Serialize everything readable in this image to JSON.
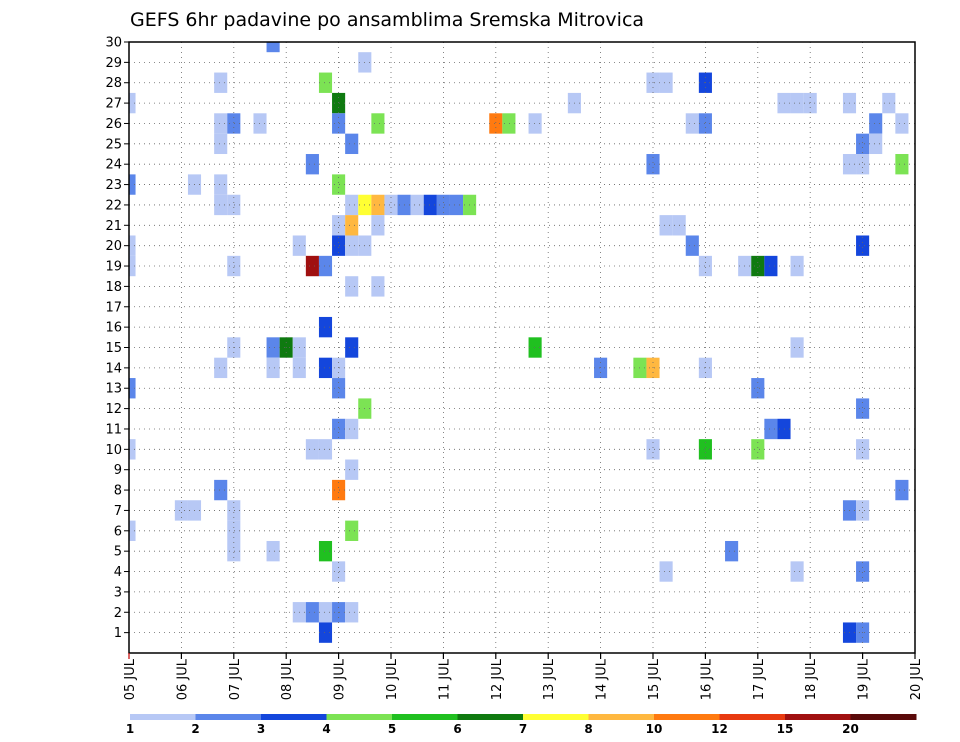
{
  "chart_data": {
    "type": "heatmap",
    "title": "GEFS 6hr padavine po ansamblima Sremska Mitrovica",
    "xlabel": "",
    "ylabel": "",
    "x_tick_labels": [
      "05 JUL",
      "06 JUL",
      "07 JUL",
      "08 JUL",
      "09 JUL",
      "10 JUL",
      "11 JUL",
      "12 JUL",
      "13 JUL",
      "14 JUL",
      "15 JUL",
      "16 JUL",
      "17 JUL",
      "18 JUL",
      "19 JUL",
      "20 JUL"
    ],
    "x_range_days": [
      0,
      15
    ],
    "y_tick_labels": [
      "1",
      "2",
      "3",
      "4",
      "5",
      "6",
      "7",
      "8",
      "9",
      "10",
      "11",
      "12",
      "13",
      "14",
      "15",
      "16",
      "17",
      "18",
      "19",
      "20",
      "21",
      "22",
      "23",
      "24",
      "25",
      "26",
      "27",
      "28",
      "29",
      "30"
    ],
    "y_range": [
      0,
      30
    ],
    "grid": true,
    "colorbar": {
      "position": "bottom",
      "tick_labels": [
        "1",
        "2",
        "3",
        "4",
        "5",
        "6",
        "7",
        "8",
        "10",
        "12",
        "15",
        "20"
      ],
      "colors": [
        "#b7c8f5",
        "#5b86ea",
        "#1446dc",
        "#7ce354",
        "#20c020",
        "#0f7a10",
        "#ffff33",
        "#ffb840",
        "#ff7a10",
        "#e83a10",
        "#a01010",
        "#5a0a0a"
      ]
    },
    "cells": [
      {
        "x": 2.75,
        "m": 30,
        "c": 2
      },
      {
        "x": 4.5,
        "m": 29,
        "c": 1
      },
      {
        "x": 1.75,
        "m": 28,
        "c": 1
      },
      {
        "x": 3.75,
        "m": 28,
        "c": 4
      },
      {
        "x": 10,
        "m": 28,
        "c": 1
      },
      {
        "x": 10.25,
        "m": 28,
        "c": 1
      },
      {
        "x": 11,
        "m": 28,
        "c": 3
      },
      {
        "x": 0,
        "m": 27,
        "c": 1
      },
      {
        "x": 4,
        "m": 27,
        "c": 6
      },
      {
        "x": 8.5,
        "m": 27,
        "c": 1
      },
      {
        "x": 12.5,
        "m": 27,
        "c": 1
      },
      {
        "x": 12.75,
        "m": 27,
        "c": 1
      },
      {
        "x": 13,
        "m": 27,
        "c": 1
      },
      {
        "x": 13.75,
        "m": 27,
        "c": 1
      },
      {
        "x": 14.5,
        "m": 27,
        "c": 1
      },
      {
        "x": 1.75,
        "m": 26,
        "c": 1
      },
      {
        "x": 2,
        "m": 26,
        "c": 2
      },
      {
        "x": 2.5,
        "m": 26,
        "c": 1
      },
      {
        "x": 4,
        "m": 26,
        "c": 2
      },
      {
        "x": 4.75,
        "m": 26,
        "c": 4
      },
      {
        "x": 7,
        "m": 26,
        "c": 9
      },
      {
        "x": 7.25,
        "m": 26,
        "c": 4
      },
      {
        "x": 7.75,
        "m": 26,
        "c": 1
      },
      {
        "x": 10.75,
        "m": 26,
        "c": 1
      },
      {
        "x": 11,
        "m": 26,
        "c": 2
      },
      {
        "x": 14.25,
        "m": 26,
        "c": 2
      },
      {
        "x": 14.75,
        "m": 26,
        "c": 1
      },
      {
        "x": 1.75,
        "m": 25,
        "c": 1
      },
      {
        "x": 4.25,
        "m": 25,
        "c": 2
      },
      {
        "x": 14,
        "m": 25,
        "c": 2
      },
      {
        "x": 14.25,
        "m": 25,
        "c": 1
      },
      {
        "x": 3.5,
        "m": 24,
        "c": 2
      },
      {
        "x": 10,
        "m": 24,
        "c": 2
      },
      {
        "x": 13.75,
        "m": 24,
        "c": 1
      },
      {
        "x": 14,
        "m": 24,
        "c": 1
      },
      {
        "x": 14.75,
        "m": 24,
        "c": 4
      },
      {
        "x": 0,
        "m": 23,
        "c": 2
      },
      {
        "x": 1.25,
        "m": 23,
        "c": 1
      },
      {
        "x": 1.75,
        "m": 23,
        "c": 1
      },
      {
        "x": 4,
        "m": 23,
        "c": 4
      },
      {
        "x": 1.75,
        "m": 22,
        "c": 1
      },
      {
        "x": 2,
        "m": 22,
        "c": 1
      },
      {
        "x": 4.25,
        "m": 22,
        "c": 1
      },
      {
        "x": 4.5,
        "m": 22,
        "c": 7
      },
      {
        "x": 4.75,
        "m": 22,
        "c": 8
      },
      {
        "x": 5,
        "m": 22,
        "c": 1
      },
      {
        "x": 5.25,
        "m": 22,
        "c": 2
      },
      {
        "x": 5.5,
        "m": 22,
        "c": 1
      },
      {
        "x": 5.75,
        "m": 22,
        "c": 3
      },
      {
        "x": 6,
        "m": 22,
        "c": 2
      },
      {
        "x": 6.25,
        "m": 22,
        "c": 2
      },
      {
        "x": 6.5,
        "m": 22,
        "c": 4
      },
      {
        "x": 4,
        "m": 21,
        "c": 1
      },
      {
        "x": 4.25,
        "m": 21,
        "c": 8
      },
      {
        "x": 4.75,
        "m": 21,
        "c": 1
      },
      {
        "x": 10.25,
        "m": 21,
        "c": 1
      },
      {
        "x": 10.5,
        "m": 21,
        "c": 1
      },
      {
        "x": 0,
        "m": 20,
        "c": 1
      },
      {
        "x": 3.25,
        "m": 20,
        "c": 1
      },
      {
        "x": 4,
        "m": 20,
        "c": 3
      },
      {
        "x": 4.25,
        "m": 20,
        "c": 1
      },
      {
        "x": 4.5,
        "m": 20,
        "c": 1
      },
      {
        "x": 10.75,
        "m": 20,
        "c": 2
      },
      {
        "x": 14,
        "m": 20,
        "c": 3
      },
      {
        "x": 0,
        "m": 19,
        "c": 1
      },
      {
        "x": 2,
        "m": 19,
        "c": 1
      },
      {
        "x": 3.5,
        "m": 19,
        "c": 11
      },
      {
        "x": 3.75,
        "m": 19,
        "c": 2
      },
      {
        "x": 11,
        "m": 19,
        "c": 1
      },
      {
        "x": 11.75,
        "m": 19,
        "c": 1
      },
      {
        "x": 12,
        "m": 19,
        "c": 6
      },
      {
        "x": 12.25,
        "m": 19,
        "c": 3
      },
      {
        "x": 12.75,
        "m": 19,
        "c": 1
      },
      {
        "x": 4.25,
        "m": 18,
        "c": 1
      },
      {
        "x": 4.75,
        "m": 18,
        "c": 1
      },
      {
        "x": 3.75,
        "m": 16,
        "c": 3
      },
      {
        "x": 2,
        "m": 15,
        "c": 1
      },
      {
        "x": 2.75,
        "m": 15,
        "c": 2
      },
      {
        "x": 3,
        "m": 15,
        "c": 6
      },
      {
        "x": 3.25,
        "m": 15,
        "c": 1
      },
      {
        "x": 4.25,
        "m": 15,
        "c": 3
      },
      {
        "x": 7.75,
        "m": 15,
        "c": 5
      },
      {
        "x": 12.75,
        "m": 15,
        "c": 1
      },
      {
        "x": 1.75,
        "m": 14,
        "c": 1
      },
      {
        "x": 2.75,
        "m": 14,
        "c": 1
      },
      {
        "x": 3.25,
        "m": 14,
        "c": 1
      },
      {
        "x": 3.75,
        "m": 14,
        "c": 3
      },
      {
        "x": 4,
        "m": 14,
        "c": 1
      },
      {
        "x": 9,
        "m": 14,
        "c": 2
      },
      {
        "x": 9.75,
        "m": 14,
        "c": 4
      },
      {
        "x": 10,
        "m": 14,
        "c": 8
      },
      {
        "x": 11,
        "m": 14,
        "c": 1
      },
      {
        "x": 0,
        "m": 13,
        "c": 2
      },
      {
        "x": 4,
        "m": 13,
        "c": 2
      },
      {
        "x": 12,
        "m": 13,
        "c": 2
      },
      {
        "x": 4.5,
        "m": 12,
        "c": 4
      },
      {
        "x": 14,
        "m": 12,
        "c": 2
      },
      {
        "x": 4,
        "m": 11,
        "c": 2
      },
      {
        "x": 4.25,
        "m": 11,
        "c": 1
      },
      {
        "x": 12.25,
        "m": 11,
        "c": 2
      },
      {
        "x": 12.5,
        "m": 11,
        "c": 3
      },
      {
        "x": 0,
        "m": 10,
        "c": 1
      },
      {
        "x": 3.5,
        "m": 10,
        "c": 1
      },
      {
        "x": 3.75,
        "m": 10,
        "c": 1
      },
      {
        "x": 10,
        "m": 10,
        "c": 1
      },
      {
        "x": 11,
        "m": 10,
        "c": 5
      },
      {
        "x": 12,
        "m": 10,
        "c": 4
      },
      {
        "x": 14,
        "m": 10,
        "c": 1
      },
      {
        "x": 4.25,
        "m": 9,
        "c": 1
      },
      {
        "x": 1.75,
        "m": 8,
        "c": 2
      },
      {
        "x": 4,
        "m": 8,
        "c": 9
      },
      {
        "x": 14.75,
        "m": 8,
        "c": 2
      },
      {
        "x": 1,
        "m": 7,
        "c": 1
      },
      {
        "x": 1.25,
        "m": 7,
        "c": 1
      },
      {
        "x": 2,
        "m": 7,
        "c": 1
      },
      {
        "x": 13.75,
        "m": 7,
        "c": 2
      },
      {
        "x": 14,
        "m": 7,
        "c": 1
      },
      {
        "x": 0,
        "m": 6,
        "c": 1
      },
      {
        "x": 2,
        "m": 6,
        "c": 1
      },
      {
        "x": 4.25,
        "m": 6,
        "c": 4
      },
      {
        "x": 2,
        "m": 5,
        "c": 1
      },
      {
        "x": 2.75,
        "m": 5,
        "c": 1
      },
      {
        "x": 3.75,
        "m": 5,
        "c": 5
      },
      {
        "x": 11.5,
        "m": 5,
        "c": 2
      },
      {
        "x": 4,
        "m": 4,
        "c": 1
      },
      {
        "x": 10.25,
        "m": 4,
        "c": 1
      },
      {
        "x": 12.75,
        "m": 4,
        "c": 1
      },
      {
        "x": 14,
        "m": 4,
        "c": 2
      },
      {
        "x": 3.25,
        "m": 2,
        "c": 1
      },
      {
        "x": 3.5,
        "m": 2,
        "c": 2
      },
      {
        "x": 3.75,
        "m": 2,
        "c": 1
      },
      {
        "x": 4,
        "m": 2,
        "c": 2
      },
      {
        "x": 4.25,
        "m": 2,
        "c": 1
      },
      {
        "x": 3.75,
        "m": 1,
        "c": 3
      },
      {
        "x": 13.75,
        "m": 1,
        "c": 3
      },
      {
        "x": 14,
        "m": 1,
        "c": 2
      }
    ]
  }
}
